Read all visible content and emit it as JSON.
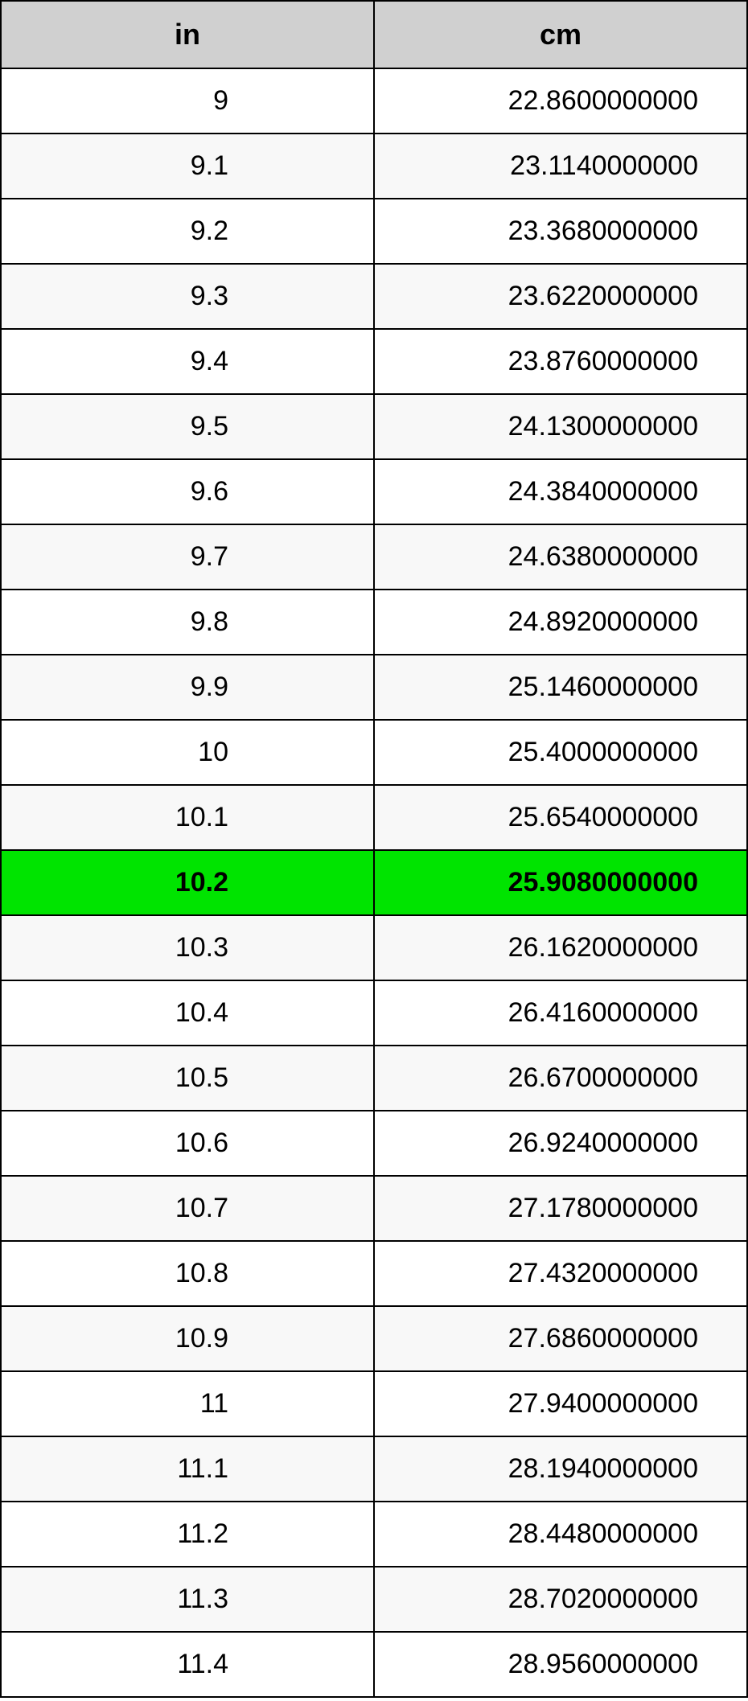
{
  "table": {
    "columns": [
      "in",
      "cm"
    ],
    "header_bg": "#d0d0d0",
    "header_fontsize": 36,
    "cell_fontsize": 34,
    "border_color": "#000000",
    "row_bg_even": "#ffffff",
    "row_bg_odd": "#f8f8f8",
    "highlight_bg": "#00e400",
    "highlight_index": 12,
    "rows": [
      {
        "in": "9",
        "cm": "22.8600000000"
      },
      {
        "in": "9.1",
        "cm": "23.1140000000"
      },
      {
        "in": "9.2",
        "cm": "23.3680000000"
      },
      {
        "in": "9.3",
        "cm": "23.6220000000"
      },
      {
        "in": "9.4",
        "cm": "23.8760000000"
      },
      {
        "in": "9.5",
        "cm": "24.1300000000"
      },
      {
        "in": "9.6",
        "cm": "24.3840000000"
      },
      {
        "in": "9.7",
        "cm": "24.6380000000"
      },
      {
        "in": "9.8",
        "cm": "24.8920000000"
      },
      {
        "in": "9.9",
        "cm": "25.1460000000"
      },
      {
        "in": "10",
        "cm": "25.4000000000"
      },
      {
        "in": "10.1",
        "cm": "25.6540000000"
      },
      {
        "in": "10.2",
        "cm": "25.9080000000"
      },
      {
        "in": "10.3",
        "cm": "26.1620000000"
      },
      {
        "in": "10.4",
        "cm": "26.4160000000"
      },
      {
        "in": "10.5",
        "cm": "26.6700000000"
      },
      {
        "in": "10.6",
        "cm": "26.9240000000"
      },
      {
        "in": "10.7",
        "cm": "27.1780000000"
      },
      {
        "in": "10.8",
        "cm": "27.4320000000"
      },
      {
        "in": "10.9",
        "cm": "27.6860000000"
      },
      {
        "in": "11",
        "cm": "27.9400000000"
      },
      {
        "in": "11.1",
        "cm": "28.1940000000"
      },
      {
        "in": "11.2",
        "cm": "28.4480000000"
      },
      {
        "in": "11.3",
        "cm": "28.7020000000"
      },
      {
        "in": "11.4",
        "cm": "28.9560000000"
      }
    ]
  }
}
